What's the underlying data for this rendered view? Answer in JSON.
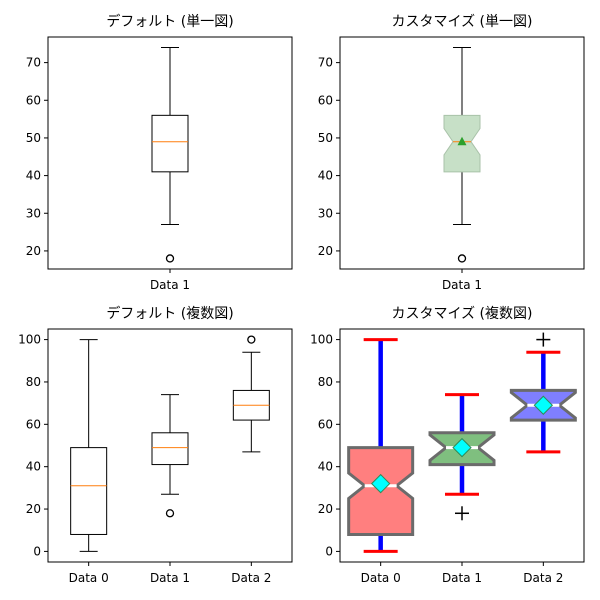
{
  "chart_data": [
    {
      "type": "boxplot",
      "title": "デフォルト (単一図)",
      "style": "default",
      "categories": [
        "Data 1"
      ],
      "ylim": [
        15.2,
        76.8
      ],
      "yticks": [
        20,
        30,
        40,
        50,
        60,
        70
      ],
      "boxes": [
        {
          "label": "Data 1",
          "whislo": 27,
          "q1": 41,
          "med": 49,
          "q3": 56,
          "whishi": 74,
          "mean": 49,
          "fliers": [
            18
          ]
        }
      ]
    },
    {
      "type": "boxplot",
      "title": "カスタマイズ (単一図)",
      "style": "custom-single",
      "categories": [
        "Data 1"
      ],
      "ylim": [
        15.2,
        76.8
      ],
      "yticks": [
        20,
        30,
        40,
        50,
        60,
        70
      ],
      "box_color": "#c7e0c7",
      "mean_color": "#2ca02c",
      "median_color": "#ff7f0e",
      "boxes": [
        {
          "label": "Data 1",
          "whislo": 27,
          "q1": 41,
          "med": 49,
          "q3": 56,
          "whishi": 74,
          "mean": 49,
          "fliers": [
            18
          ]
        }
      ]
    },
    {
      "type": "boxplot",
      "title": "デフォルト (複数図)",
      "style": "default",
      "categories": [
        "Data 0",
        "Data 1",
        "Data 2"
      ],
      "ylim": [
        -5,
        105
      ],
      "yticks": [
        0,
        20,
        40,
        60,
        80,
        100
      ],
      "boxes": [
        {
          "label": "Data 0",
          "whislo": 0,
          "q1": 8,
          "med": 31,
          "q3": 49,
          "whishi": 100,
          "mean": 32,
          "fliers": []
        },
        {
          "label": "Data 1",
          "whislo": 27,
          "q1": 41,
          "med": 49,
          "q3": 56,
          "whishi": 74,
          "mean": 49,
          "fliers": [
            18
          ]
        },
        {
          "label": "Data 2",
          "whislo": 47,
          "q1": 62,
          "med": 69,
          "q3": 76,
          "whishi": 94,
          "mean": 69,
          "fliers": [
            100
          ]
        }
      ]
    },
    {
      "type": "boxplot",
      "title": "カスタマイズ (複数図)",
      "style": "custom-multi",
      "categories": [
        "Data 0",
        "Data 1",
        "Data 2"
      ],
      "ylim": [
        -5,
        105
      ],
      "yticks": [
        0,
        20,
        40,
        60,
        80,
        100
      ],
      "box_colors": [
        "#ff7f7f",
        "#7fbf7f",
        "#7f7fff"
      ],
      "whisker_color": "#0000ff",
      "cap_color": "#ff0000",
      "mean_color": "#00ffff",
      "median_color": "#ffffff",
      "boxes": [
        {
          "label": "Data 0",
          "whislo": 0,
          "q1": 8,
          "med": 31,
          "q3": 49,
          "whishi": 100,
          "mean": 32,
          "fliers": []
        },
        {
          "label": "Data 1",
          "whislo": 27,
          "q1": 41,
          "med": 49,
          "q3": 56,
          "whishi": 74,
          "mean": 49,
          "fliers": [
            18
          ]
        },
        {
          "label": "Data 2",
          "whislo": 47,
          "q1": 62,
          "med": 69,
          "q3": 76,
          "whishi": 94,
          "mean": 69,
          "fliers": [
            100
          ]
        }
      ]
    }
  ]
}
